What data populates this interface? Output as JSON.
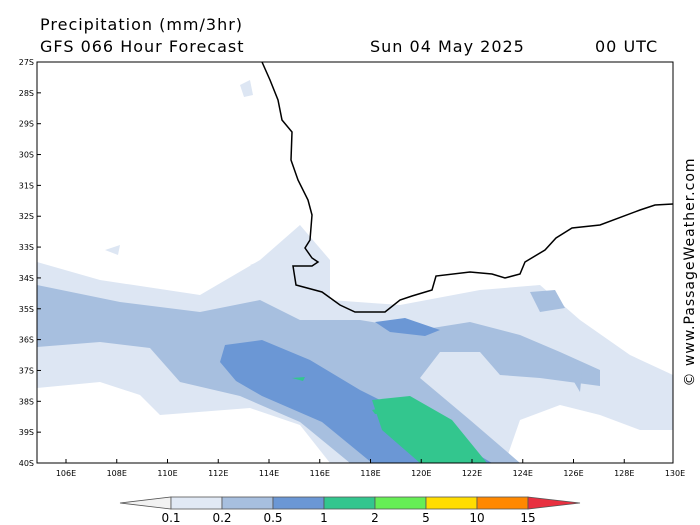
{
  "header": {
    "title": "Precipitation (mm/3hr)",
    "subtitle": "GFS 066 Hour Forecast",
    "date": "Sun 04 May 2025",
    "time": "00 UTC"
  },
  "map": {
    "lat_labels": [
      "27S",
      "28S",
      "29S",
      "30S",
      "31S",
      "32S",
      "33S",
      "34S",
      "35S",
      "36S",
      "37S",
      "38S",
      "39S",
      "40S"
    ],
    "lon_labels": [
      "106E",
      "108E",
      "110E",
      "112E",
      "114E",
      "116E",
      "118E",
      "120E",
      "122E",
      "124E",
      "126E",
      "128E",
      "130E"
    ]
  },
  "legend": {
    "labels": [
      "0.1",
      "0.2",
      "0.5",
      "1",
      "2",
      "5",
      "10",
      "15"
    ]
  },
  "watermark": "© www.PassageWeather.com"
}
